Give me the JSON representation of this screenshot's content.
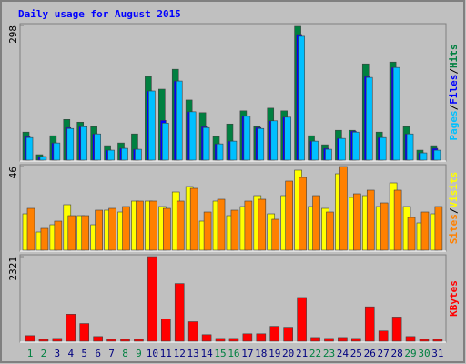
{
  "title": "Daily usage for August 2015",
  "legend_separator": "/",
  "chart_data": [
    {
      "type": "bar",
      "ylim": [
        0,
        298
      ],
      "yticks": [
        298
      ],
      "series": [
        {
          "name": "Hits",
          "color": "#008040",
          "values": [
            62,
            12,
            54,
            90,
            84,
            74,
            32,
            38,
            58,
            185,
            157,
            201,
            133,
            105,
            52,
            80,
            109,
            74,
            115,
            109,
            296,
            54,
            34,
            66,
            66,
            213,
            62,
            217,
            74,
            22,
            32
          ]
        },
        {
          "name": "Files",
          "color": "#0000ff",
          "values": [
            52,
            8,
            38,
            72,
            74,
            58,
            22,
            26,
            24,
            153,
            88,
            175,
            107,
            74,
            36,
            42,
            97,
            72,
            87,
            95,
            278,
            42,
            26,
            48,
            64,
            185,
            50,
            205,
            58,
            16,
            26
          ]
        },
        {
          "name": "Pages",
          "color": "#00c0ff",
          "values": [
            50,
            8,
            38,
            70,
            74,
            58,
            22,
            26,
            24,
            153,
            82,
            175,
            107,
            72,
            36,
            42,
            97,
            70,
            87,
            95,
            274,
            42,
            24,
            48,
            62,
            183,
            50,
            205,
            58,
            16,
            22
          ]
        }
      ]
    },
    {
      "type": "bar",
      "ylim": [
        0,
        46
      ],
      "yticks": [
        46
      ],
      "series": [
        {
          "name": "Visits",
          "color": "#ffff00",
          "values": [
            20,
            10,
            14,
            25,
            19,
            14,
            22,
            21,
            27,
            27,
            24,
            32,
            35,
            16,
            27,
            19,
            24,
            30,
            20,
            30,
            44,
            24,
            23,
            42,
            29,
            30,
            24,
            37,
            24,
            15,
            20
          ]
        },
        {
          "name": "Sites",
          "color": "#ff8000",
          "values": [
            23,
            12,
            16,
            19,
            19,
            22,
            23,
            24,
            27,
            27,
            23,
            27,
            34,
            21,
            28,
            22,
            27,
            28,
            17,
            38,
            40,
            30,
            21,
            46,
            31,
            33,
            26,
            33,
            18,
            21,
            24
          ]
        }
      ]
    },
    {
      "type": "bar",
      "ylim": [
        0,
        2321
      ],
      "yticks": [
        2321
      ],
      "categories": [
        "1",
        "2",
        "3",
        "4",
        "5",
        "6",
        "7",
        "8",
        "9",
        "10",
        "11",
        "12",
        "13",
        "14",
        "15",
        "16",
        "17",
        "18",
        "19",
        "20",
        "21",
        "22",
        "23",
        "24",
        "25",
        "26",
        "27",
        "28",
        "29",
        "30",
        "31"
      ],
      "category_colors": [
        "#008040",
        "#008040",
        "#000080",
        "#000080",
        "#000080",
        "#000080",
        "#000080",
        "#008040",
        "#008040",
        "#000080",
        "#000080",
        "#000080",
        "#000080",
        "#000080",
        "#008040",
        "#008040",
        "#000080",
        "#000080",
        "#000080",
        "#000080",
        "#000080",
        "#008040",
        "#008040",
        "#000080",
        "#000080",
        "#000080",
        "#000080",
        "#000080",
        "#008040",
        "#008040",
        "#000080"
      ],
      "series": [
        {
          "name": "KBytes",
          "color": "#ff0000",
          "values": [
            153,
            51,
            77,
            740,
            485,
            128,
            51,
            51,
            51,
            2321,
            612,
            1581,
            536,
            179,
            77,
            77,
            204,
            204,
            408,
            383,
            1199,
            102,
            77,
            102,
            77,
            944,
            281,
            663,
            128,
            51,
            51
          ]
        }
      ]
    }
  ]
}
